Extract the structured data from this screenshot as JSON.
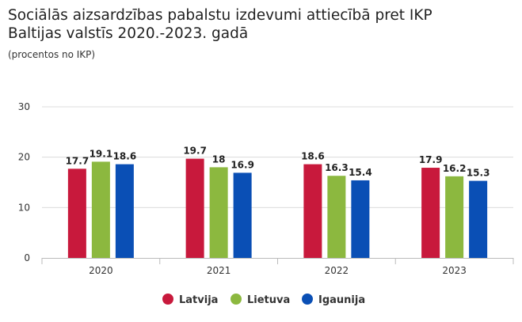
{
  "title_line1": "Sociālās aizsardzības pabalstu izdevumi attiecībā pret IKP",
  "title_line2": "Baltijas valstīs 2020.-2023. gadā",
  "subtitle": "(procentos no IKP)",
  "chart_data": {
    "type": "bar",
    "title": "Sociālās aizsardzības pabalstu izdevumi attiecībā pret IKP Baltijas valstīs 2020.-2023. gadā",
    "subtitle": "(procentos no IKP)",
    "categories": [
      "2020",
      "2021",
      "2022",
      "2023"
    ],
    "series": [
      {
        "name": "Latvija",
        "color": "#c8193c",
        "values": [
          17.7,
          19.7,
          18.6,
          17.9
        ],
        "labels": [
          "17.7",
          "19.7",
          "18.6",
          "17.9"
        ]
      },
      {
        "name": "Lietuva",
        "color": "#8cb83f",
        "values": [
          19.1,
          18,
          16.3,
          16.2
        ],
        "labels": [
          "19.1",
          "18",
          "16.3",
          "16.2"
        ]
      },
      {
        "name": "Igaunija",
        "color": "#0a4fb5",
        "values": [
          18.6,
          16.9,
          15.4,
          15.3
        ],
        "labels": [
          "18.6",
          "16.9",
          "15.4",
          "15.3"
        ]
      }
    ],
    "yticks": [
      "0",
      "10",
      "20",
      "30"
    ],
    "ylim": [
      0,
      30
    ],
    "grid": true,
    "legend": "bottom-center"
  }
}
